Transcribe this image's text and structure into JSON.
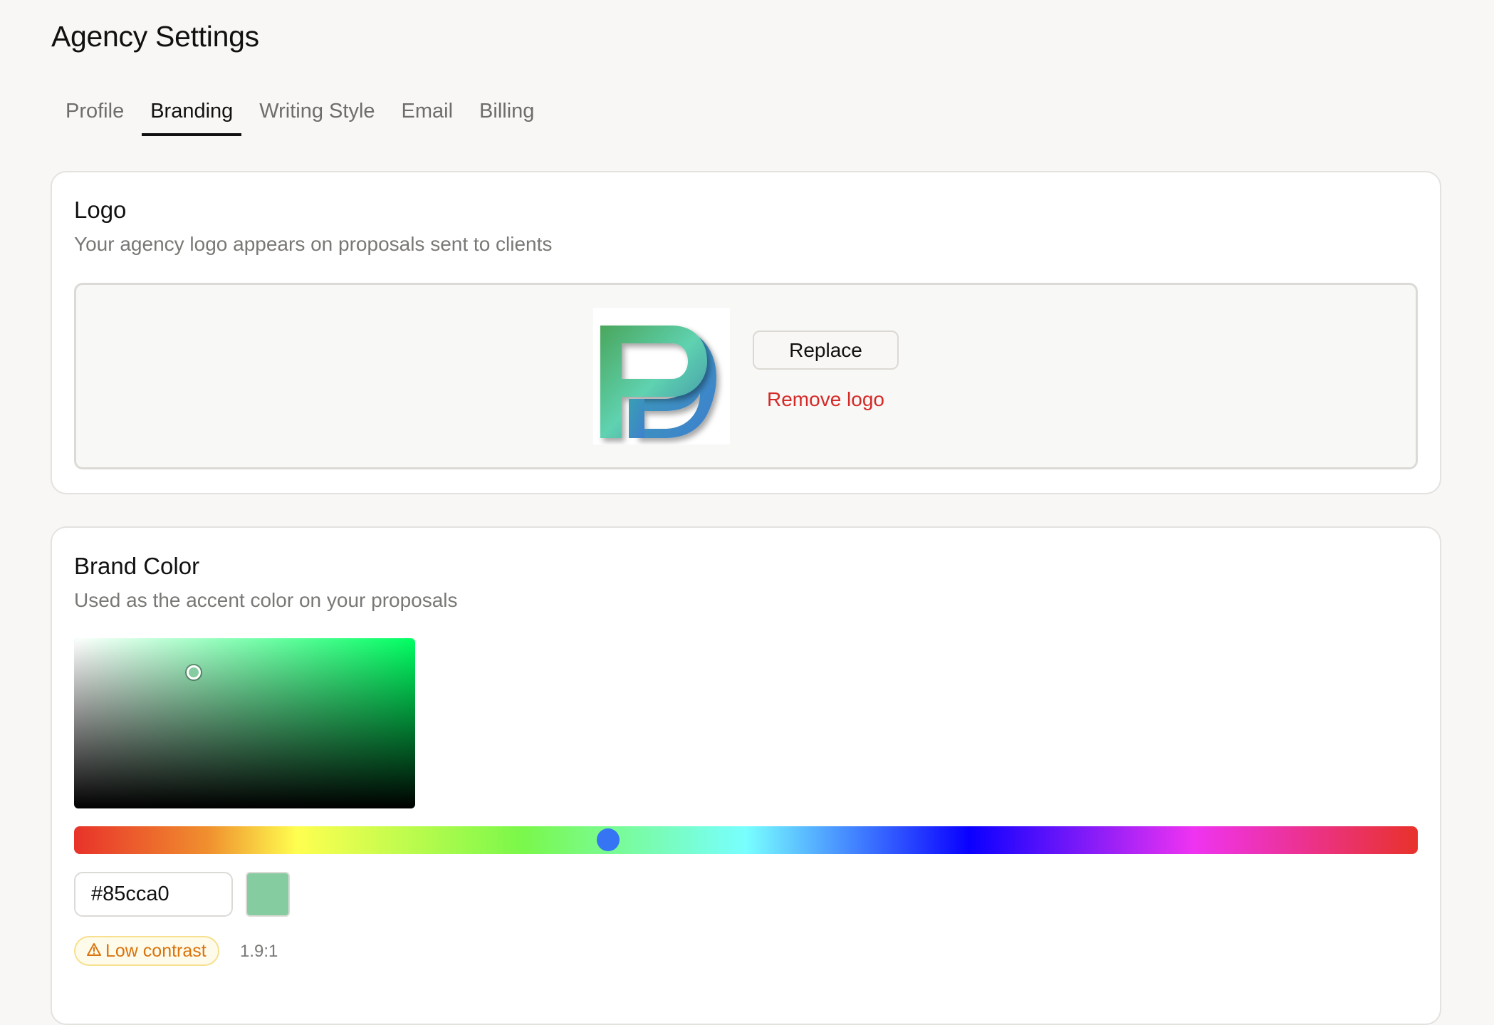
{
  "page": {
    "title": "Agency Settings"
  },
  "tabs": [
    {
      "label": "Profile",
      "active": false
    },
    {
      "label": "Branding",
      "active": true
    },
    {
      "label": "Writing Style",
      "active": false
    },
    {
      "label": "Email",
      "active": false
    },
    {
      "label": "Billing",
      "active": false
    }
  ],
  "logo_section": {
    "heading": "Logo",
    "description": "Your agency logo appears on proposals sent to clients",
    "replace_label": "Replace",
    "remove_label": "Remove logo"
  },
  "brand_color": {
    "heading": "Brand Color",
    "description": "Used as the accent color on your proposals",
    "hex_value": "#85cca0",
    "hue_degrees": 143,
    "saturation_percent": 35,
    "value_percent": 80,
    "contrast_badge": "Low contrast",
    "contrast_icon": "warning-triangle-icon",
    "contrast_ratio": "1.9:1",
    "colors": {
      "warning": "#d9730d",
      "danger": "#d42a27",
      "hue_thumb": "#3574f2"
    }
  }
}
